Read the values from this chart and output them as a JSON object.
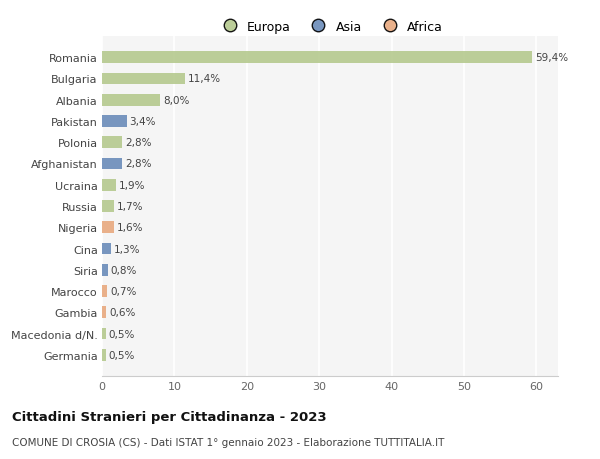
{
  "countries": [
    "Romania",
    "Bulgaria",
    "Albania",
    "Pakistan",
    "Polonia",
    "Afghanistan",
    "Ucraina",
    "Russia",
    "Nigeria",
    "Cina",
    "Siria",
    "Marocco",
    "Gambia",
    "Macedonia d/N.",
    "Germania"
  ],
  "values": [
    59.4,
    11.4,
    8.0,
    3.4,
    2.8,
    2.8,
    1.9,
    1.7,
    1.6,
    1.3,
    0.8,
    0.7,
    0.6,
    0.5,
    0.5
  ],
  "labels": [
    "59,4%",
    "11,4%",
    "8,0%",
    "3,4%",
    "2,8%",
    "2,8%",
    "1,9%",
    "1,7%",
    "1,6%",
    "1,3%",
    "0,8%",
    "0,7%",
    "0,6%",
    "0,5%",
    "0,5%"
  ],
  "continents": [
    "Europa",
    "Europa",
    "Europa",
    "Asia",
    "Europa",
    "Asia",
    "Europa",
    "Europa",
    "Africa",
    "Asia",
    "Asia",
    "Africa",
    "Africa",
    "Europa",
    "Europa"
  ],
  "colors": {
    "Europa": "#b5c98e",
    "Asia": "#6b8cba",
    "Africa": "#e8a97e"
  },
  "legend_items": [
    {
      "label": "Europa",
      "color": "#b5c98e"
    },
    {
      "label": "Asia",
      "color": "#6b8cba"
    },
    {
      "label": "Africa",
      "color": "#e8a97e"
    }
  ],
  "xlim": [
    0,
    63
  ],
  "xticks": [
    0,
    10,
    20,
    30,
    40,
    50,
    60
  ],
  "title": "Cittadini Stranieri per Cittadinanza - 2023",
  "subtitle": "COMUNE DI CROSIA (CS) - Dati ISTAT 1° gennaio 2023 - Elaborazione TUTTITALIA.IT",
  "background_color": "#ffffff",
  "plot_bg_color": "#f5f5f5",
  "grid_color": "#ffffff",
  "bar_height": 0.55
}
